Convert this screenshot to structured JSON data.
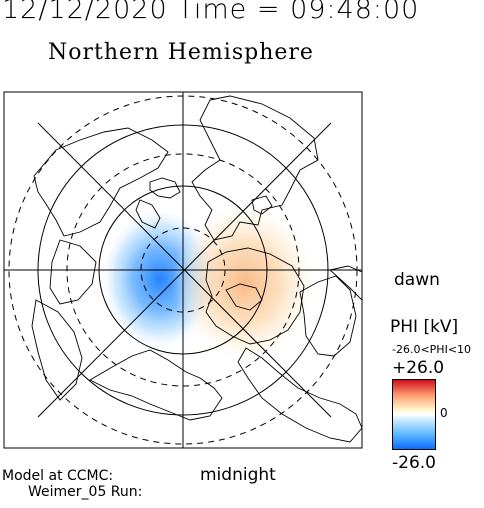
{
  "header": {
    "datetime": "12/12/2020 Time = 09:48:00",
    "title": "Northern Hemisphere"
  },
  "map": {
    "projection": "polar stereographic, north pole centered",
    "dawn_label": "dawn",
    "midnight_label": "midnight"
  },
  "colorbar": {
    "label": "PHI [kV]",
    "range_text": "-26.0<PHI<10",
    "max_label": "+26.0",
    "mid_label": "0",
    "min_label": "-26.0",
    "colors": {
      "max": "#d0101a",
      "mid": "#ffffff",
      "min": "#0c6cff"
    }
  },
  "footer": {
    "model_line1": "Model at CCMC:",
    "model_line2": "Weimer_05 Run:"
  }
}
